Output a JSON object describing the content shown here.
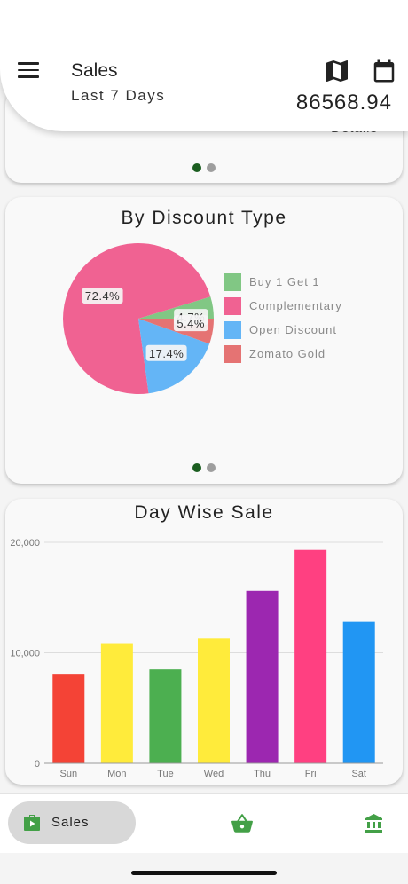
{
  "header": {
    "title": "Sales",
    "subtitle": "Last 7 Days",
    "total": "86568.94",
    "icons": [
      "menu-icon",
      "map-icon",
      "calendar-icon"
    ]
  },
  "card1": {
    "partial_text": "Details",
    "pager": {
      "pages": 2,
      "active": 0
    }
  },
  "discount_card": {
    "title": "By Discount Type",
    "pager": {
      "pages": 2,
      "active": 0
    },
    "legend": [
      {
        "label": "Buy 1 Get 1",
        "color": "#81c784"
      },
      {
        "label": "Complementary",
        "color": "#f06292"
      },
      {
        "label": "Open Discount",
        "color": "#64b5f6"
      },
      {
        "label": "Zomato Gold",
        "color": "#e57373"
      }
    ]
  },
  "day_card": {
    "title": "Day Wise Sale"
  },
  "chart_data": [
    {
      "type": "pie",
      "title": "By Discount Type",
      "labels": [
        "Buy 1 Get 1",
        "Complementary",
        "Open Discount",
        "Zomato Gold"
      ],
      "values": [
        4.7,
        72.4,
        17.4,
        5.4
      ],
      "value_labels": [
        "4.7%",
        "72.4%",
        "17.4%",
        "5.4%"
      ],
      "colors": [
        "#81c784",
        "#f06292",
        "#64b5f6",
        "#e57373"
      ],
      "legend_position": "right"
    },
    {
      "type": "bar",
      "title": "Day Wise Sale",
      "categories": [
        "Sun",
        "Mon",
        "Tue",
        "Wed",
        "Thu",
        "Fri",
        "Sat"
      ],
      "values": [
        8100,
        10800,
        8500,
        11300,
        15600,
        19300,
        12800
      ],
      "colors": [
        "#f44336",
        "#ffeb3b",
        "#4caf50",
        "#ffeb3b",
        "#9c27b0",
        "#ff4081",
        "#2196f3"
      ],
      "ylim": [
        0,
        20000
      ],
      "yticks": [
        "0",
        "10,000",
        "20,000"
      ],
      "grid": true
    }
  ],
  "bottom_nav": {
    "sales_label": "Sales",
    "items": [
      "sales",
      "basket-icon",
      "bank-icon"
    ],
    "accent": "#43a047"
  }
}
